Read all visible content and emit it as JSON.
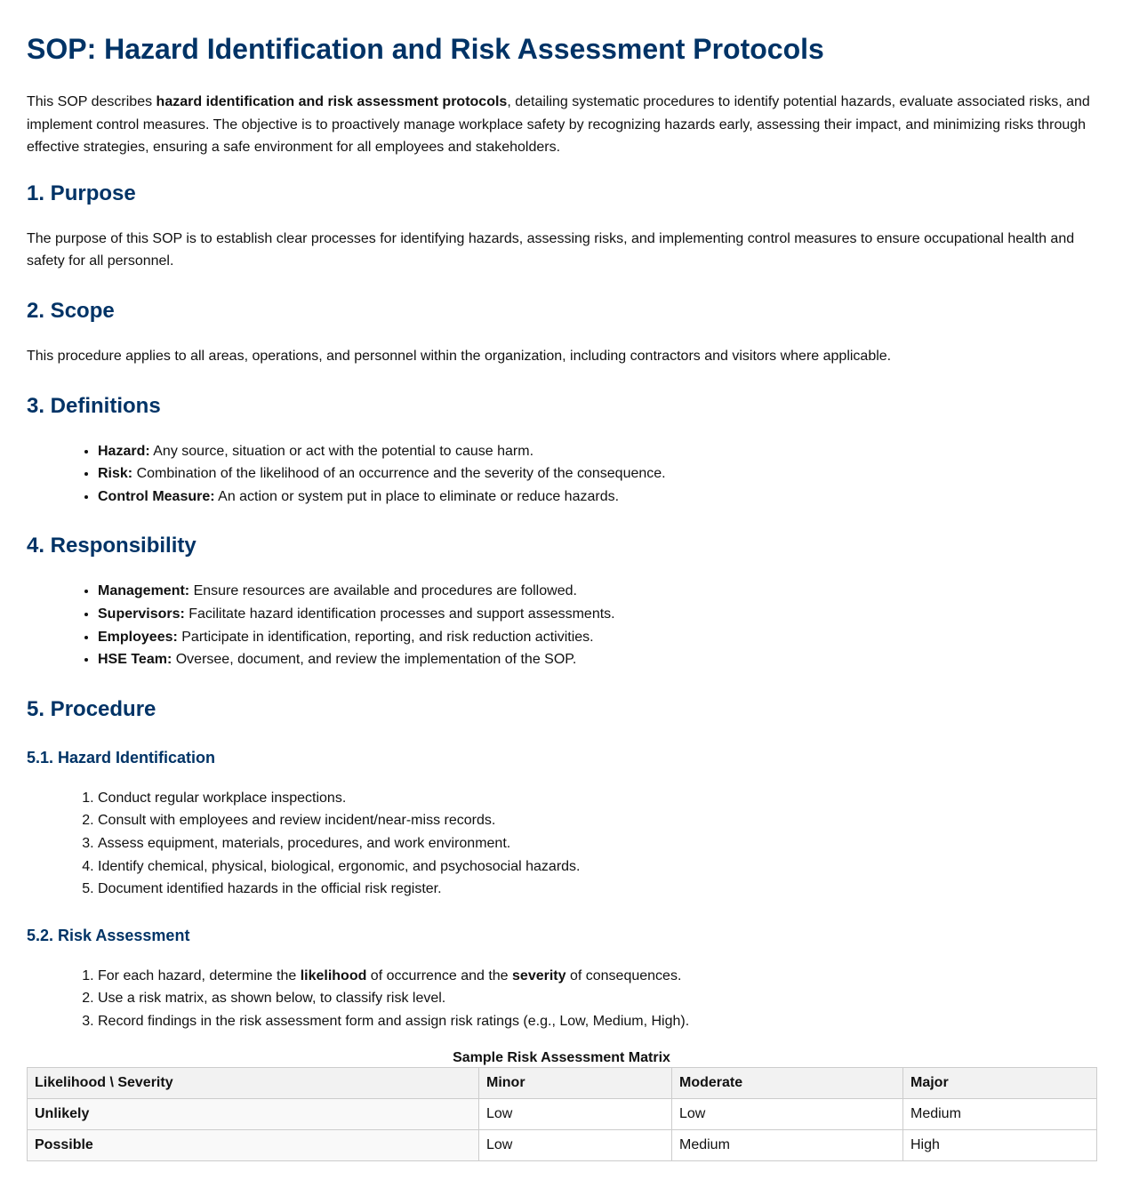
{
  "title": "SOP: Hazard Identification and Risk Assessment Protocols",
  "intro": {
    "pre": "This SOP describes ",
    "bold": "hazard identification and risk assessment protocols",
    "post": ", detailing systematic procedures to identify potential hazards, evaluate associated risks, and implement control measures. The objective is to proactively manage workplace safety by recognizing hazards early, assessing their impact, and minimizing risks through effective strategies, ensuring a safe environment for all employees and stakeholders."
  },
  "purpose": {
    "heading": "1. Purpose",
    "text": "The purpose of this SOP is to establish clear processes for identifying hazards, assessing risks, and implementing control measures to ensure occupational health and safety for all personnel."
  },
  "scope": {
    "heading": "2. Scope",
    "text": "This procedure applies to all areas, operations, and personnel within the organization, including contractors and visitors where applicable."
  },
  "definitions": {
    "heading": "3. Definitions",
    "items": [
      {
        "term": "Hazard:",
        "text": " Any source, situation or act with the potential to cause harm."
      },
      {
        "term": "Risk:",
        "text": " Combination of the likelihood of an occurrence and the severity of the consequence."
      },
      {
        "term": "Control Measure:",
        "text": " An action or system put in place to eliminate or reduce hazards."
      }
    ]
  },
  "responsibility": {
    "heading": "4. Responsibility",
    "items": [
      {
        "term": "Management:",
        "text": " Ensure resources are available and procedures are followed."
      },
      {
        "term": "Supervisors:",
        "text": " Facilitate hazard identification processes and support assessments."
      },
      {
        "term": "Employees:",
        "text": " Participate in identification, reporting, and risk reduction activities."
      },
      {
        "term": "HSE Team:",
        "text": " Oversee, document, and review the implementation of the SOP."
      }
    ]
  },
  "procedure": {
    "heading": "5. Procedure",
    "hazard_identification": {
      "heading": "5.1. Hazard Identification",
      "steps": [
        "Conduct regular workplace inspections.",
        "Consult with employees and review incident/near-miss records.",
        "Assess equipment, materials, procedures, and work environment.",
        "Identify chemical, physical, biological, ergonomic, and psychosocial hazards.",
        "Document identified hazards in the official risk register."
      ]
    },
    "risk_assessment": {
      "heading": "5.2. Risk Assessment",
      "step1": {
        "a": "For each hazard, determine the ",
        "b": "likelihood",
        "c": " of occurrence and the ",
        "d": "severity",
        "e": " of consequences."
      },
      "step2": "Use a risk matrix, as shown below, to classify risk level.",
      "step3": "Record findings in the risk assessment form and assign risk ratings (e.g., Low, Medium, High)."
    }
  },
  "matrix": {
    "caption": "Sample Risk Assessment Matrix",
    "headers": [
      "Likelihood \\ Severity",
      "Minor",
      "Moderate",
      "Major"
    ],
    "rows": [
      [
        "Unlikely",
        "Low",
        "Low",
        "Medium"
      ],
      [
        "Possible",
        "Low",
        "Medium",
        "High"
      ]
    ]
  }
}
